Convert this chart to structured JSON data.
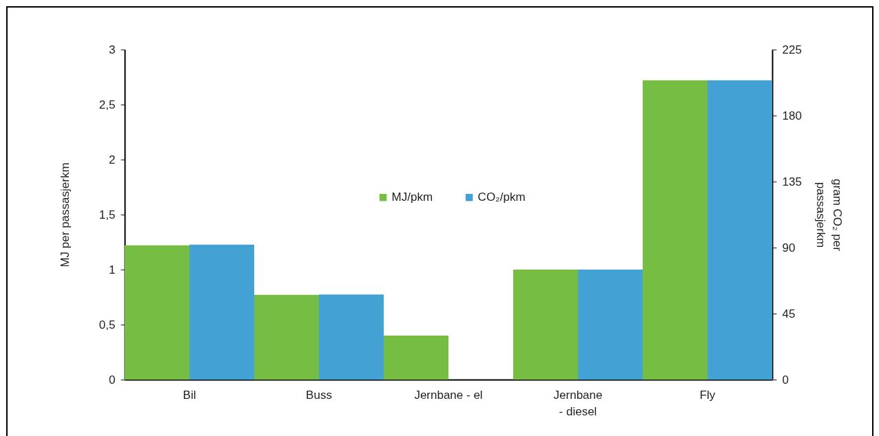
{
  "chart_data": {
    "type": "bar",
    "categories": [
      "Bil",
      "Buss",
      "Jernbane - el",
      "Jernbane - diesel",
      "Fly"
    ],
    "series": [
      {
        "name": "MJ/pkm",
        "color": "#76be43",
        "values": [
          1.22,
          0.77,
          0.4,
          1.0,
          2.72
        ]
      },
      {
        "name": "CO₂/pkm",
        "color": "#44a1d4",
        "axis": "y2",
        "values": [
          92,
          58,
          null,
          75,
          204
        ]
      }
    ],
    "ylabel": "MJ per passasjerkm",
    "y2label": "gram CO₂ per passasjerkm",
    "ylim": [
      0,
      3
    ],
    "yticks": [
      0,
      {
        "value": 0.5,
        "label": "0,5"
      },
      1,
      {
        "value": 1.5,
        "label": "1,5"
      },
      2,
      {
        "value": 2.5,
        "label": "2,5"
      },
      3
    ],
    "y2lim": [
      0,
      225
    ],
    "y2ticks": [
      0,
      45,
      90,
      135,
      180,
      225
    ],
    "legend": "center"
  }
}
